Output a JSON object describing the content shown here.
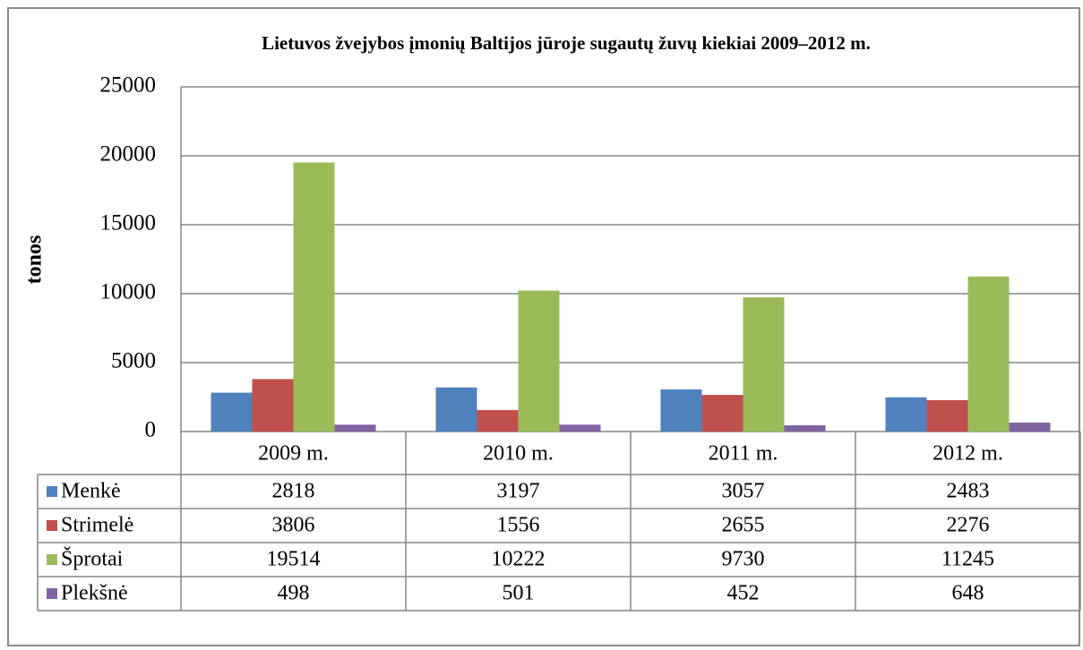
{
  "chart_data": {
    "type": "bar",
    "title": "Lietuvos žvejybos įmonių Baltijos jūroje sugautų žuvų kiekiai 2009–2012 m.",
    "y_label": "tonos",
    "categories": [
      "2009 m.",
      "2010 m.",
      "2011 m.",
      "2012 m."
    ],
    "series": [
      {
        "name": "Menkė",
        "color": "#4f81bd",
        "values": [
          2818,
          3197,
          3057,
          2483
        ]
      },
      {
        "name": "Strimelė",
        "color": "#c0504d",
        "values": [
          3806,
          1556,
          2655,
          2276
        ]
      },
      {
        "name": "Šprotai",
        "color": "#9bbb59",
        "values": [
          19514,
          10222,
          9730,
          11245
        ]
      },
      {
        "name": "Plekšnė",
        "color": "#8064a2",
        "values": [
          498,
          501,
          452,
          648
        ]
      }
    ],
    "ylim": [
      0,
      25000
    ],
    "yticks": [
      0,
      5000,
      10000,
      15000,
      20000,
      25000
    ],
    "grid": true
  }
}
